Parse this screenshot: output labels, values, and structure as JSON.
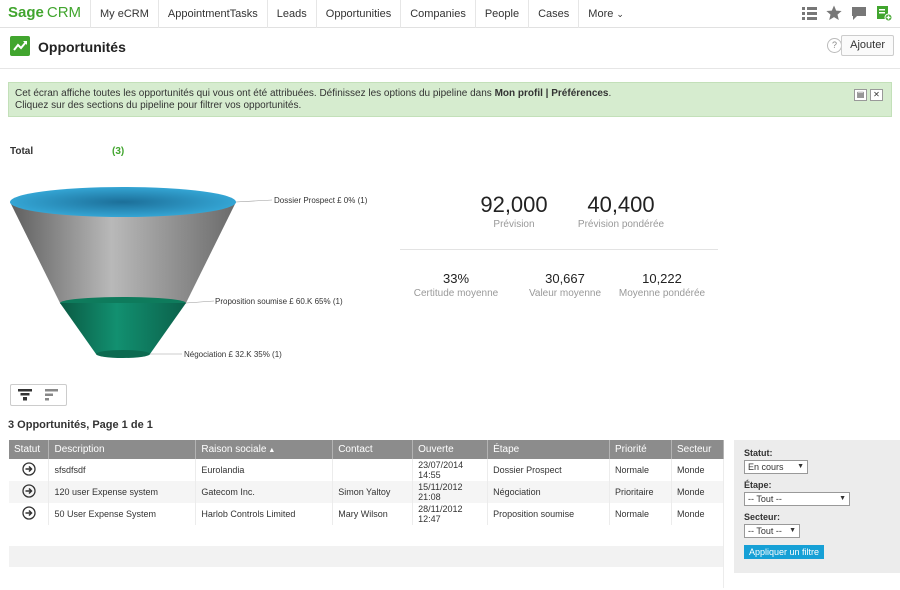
{
  "app": {
    "logo_sage": "Sage",
    "logo_crm": "CRM"
  },
  "nav": {
    "tabs": [
      "My eCRM",
      "AppointmentTasks",
      "Leads",
      "Opportunities",
      "Companies",
      "People",
      "Cases",
      "More"
    ]
  },
  "page": {
    "title": "Opportunités",
    "add_label": "Ajouter",
    "help_label": "?"
  },
  "banner": {
    "line1_pre": "Cet écran affiche toutes les opportunités qui vous ont été attribuées. Définissez les options du pipeline dans ",
    "line1_bold": "Mon profil | Préférences",
    "line1_post": ".",
    "line2": "Cliquez sur des sections du pipeline pour filtrer vos opportunités."
  },
  "total": {
    "label": "Total",
    "count": "(3)"
  },
  "funnel": {
    "stages": [
      {
        "label": "Dossier Prospect  £  0% (1)",
        "color": "#2f9fd0"
      },
      {
        "label": "Proposition soumise  £ 60.K 65% (1)",
        "color": "#8c8c8c"
      },
      {
        "label": "Négociation  £ 32.K 35% (1)",
        "color": "#0e7b5c"
      }
    ]
  },
  "metrics": {
    "forecast": {
      "value": "92,000",
      "label": "Prévision"
    },
    "weighted": {
      "value": "40,400",
      "label": "Prévision pondérée"
    },
    "certainty": {
      "value": "33%",
      "label": "Certitude moyenne"
    },
    "avg_value": {
      "value": "30,667",
      "label": "Valeur moyenne"
    },
    "avg_weighted": {
      "value": "10,222",
      "label": "Moyenne pondérée"
    }
  },
  "list": {
    "title": "3 Opportunités, Page 1 de 1",
    "columns": [
      "Statut",
      "Description",
      "Raison sociale",
      "Contact",
      "Ouverte",
      "Étape",
      "Priorité",
      "Secteur"
    ],
    "rows": [
      {
        "description": "sfsdfsdf",
        "company": "Eurolandia",
        "contact": "",
        "opened": "23/07/2014 14:55",
        "stage": "Dossier Prospect",
        "priority": "Normale",
        "sector": "Monde"
      },
      {
        "description": "120 user Expense system",
        "company": "Gatecom Inc.",
        "contact": "Simon Yaltoy",
        "opened": "15/11/2012 21:08",
        "stage": "Négociation",
        "priority": "Prioritaire",
        "sector": "Monde"
      },
      {
        "description": "50 User Expense System",
        "company": "Harlob Controls Limited",
        "contact": "Mary Wilson",
        "opened": "28/11/2012 12:47",
        "stage": "Proposition soumise",
        "priority": "Normale",
        "sector": "Monde"
      }
    ]
  },
  "filters": {
    "status_label": "Statut:",
    "status_value": "En cours",
    "stage_label": "Étape:",
    "stage_value": "-- Tout --",
    "sector_label": "Secteur:",
    "sector_value": "-- Tout --",
    "apply_label": "Appliquer un filtre"
  }
}
